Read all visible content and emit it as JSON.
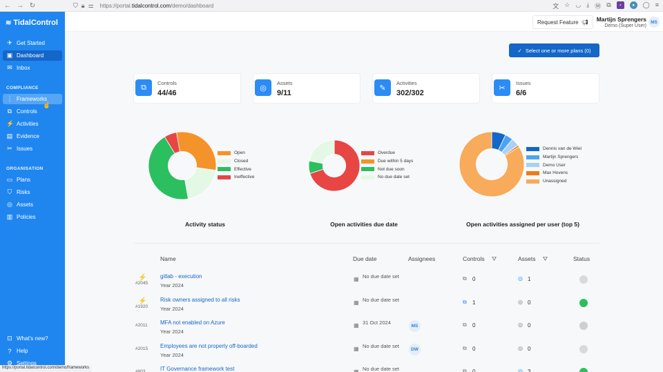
{
  "browser": {
    "url_prefix": "https://portal.",
    "url_domain": "tidalcontrol.com",
    "url_path": "/demo/dashboard",
    "status_url": "https://portal.tidalcontrol.com/demo/frameworks"
  },
  "sidebar": {
    "logo": "TidalControl",
    "top_items": [
      {
        "label": "Get Started",
        "icon": "rocket-icon",
        "glyph": "✈"
      },
      {
        "label": "Dashboard",
        "icon": "dashboard-icon",
        "glyph": "▣"
      },
      {
        "label": "Inbox",
        "icon": "inbox-icon",
        "glyph": "✉"
      }
    ],
    "compliance_label": "COMPLIANCE",
    "compliance_items": [
      {
        "label": "Frameworks",
        "icon": "frameworks-icon",
        "glyph": "⋮"
      },
      {
        "label": "Controls",
        "icon": "controls-icon",
        "glyph": "⧉"
      },
      {
        "label": "Activities",
        "icon": "activities-icon",
        "glyph": "⚡"
      },
      {
        "label": "Evidence",
        "icon": "evidence-icon",
        "glyph": "▤"
      },
      {
        "label": "Issues",
        "icon": "issues-icon",
        "glyph": "✂"
      }
    ],
    "organisation_label": "ORGANISATION",
    "organisation_items": [
      {
        "label": "Plans",
        "icon": "plans-icon",
        "glyph": "▭"
      },
      {
        "label": "Risks",
        "icon": "risks-icon",
        "glyph": "⛉"
      },
      {
        "label": "Assets",
        "icon": "assets-icon",
        "glyph": "◎"
      },
      {
        "label": "Policies",
        "icon": "policies-icon",
        "glyph": "▥"
      }
    ],
    "bottom_items": [
      {
        "label": "What's new?",
        "icon": "whats-new-icon",
        "glyph": "⊡"
      },
      {
        "label": "Help",
        "icon": "help-icon",
        "glyph": "?"
      },
      {
        "label": "Settings",
        "icon": "settings-icon",
        "glyph": "⚙"
      }
    ]
  },
  "header": {
    "request_feature": "Request Feature",
    "user_name": "Martijn Sprengers",
    "user_role": "Demo (Super User)",
    "user_initials": "MS"
  },
  "main": {
    "select_plans": "Select one or more plans (0)",
    "stats": [
      {
        "label": "Controls",
        "value": "44/46",
        "icon": "controls-icon",
        "glyph": "⧉"
      },
      {
        "label": "Assets",
        "value": "9/11",
        "icon": "globe-icon",
        "glyph": "◎"
      },
      {
        "label": "Activities",
        "value": "302/302",
        "icon": "chat-icon",
        "glyph": "✎"
      },
      {
        "label": "Issues",
        "value": "6/6",
        "icon": "tools-icon",
        "glyph": "✂"
      }
    ]
  },
  "chart_data": [
    {
      "type": "pie",
      "title": "Activity status",
      "categories": [
        "Open",
        "Closed",
        "Effective",
        "Ineffective"
      ],
      "values": [
        30,
        20,
        44,
        6
      ],
      "colors": [
        "#f5932b",
        "#e4f8e6",
        "#2bbf5f",
        "#e84545"
      ],
      "start_angle": -10,
      "legend": "right"
    },
    {
      "type": "pie",
      "title": "Open activities due date",
      "categories": [
        "Overdue",
        "Due within 5 days",
        "Not due soon",
        "No due date set"
      ],
      "values": [
        70,
        0,
        8,
        22
      ],
      "colors": [
        "#e84545",
        "#f5932b",
        "#2bbf5f",
        "#e4f8e6"
      ],
      "start_angle": 0,
      "legend": "right"
    },
    {
      "type": "pie",
      "title": "Open activities assigned per user (top 5)",
      "categories": [
        "Dennis van de Wiel",
        "Martijn Sprengers",
        "Demo User",
        "Max Hovens",
        "Unassigned"
      ],
      "values": [
        7,
        4,
        4,
        1,
        84
      ],
      "colors": [
        "#1466c8",
        "#4ea3f0",
        "#a9d1f7",
        "#f07a1a",
        "#f7ab5b"
      ],
      "start_angle": 0,
      "legend": "right"
    }
  ],
  "table": {
    "headers": {
      "name": "Name",
      "due_date": "Due date",
      "assignees": "Assignees",
      "controls": "Controls",
      "assets": "Assets",
      "status": "Status"
    },
    "rows": [
      {
        "id": "#2045",
        "title": "gitlab - execution",
        "subtitle": "Year 2024",
        "due": "No due date set",
        "assignee": "",
        "controls": "0",
        "assets": "1",
        "status": "pending",
        "bolt": true
      },
      {
        "id": "#1920",
        "title": "Risk owners assigned to all risks",
        "subtitle": "Year 2024",
        "due": "No due date set",
        "assignee": "",
        "controls": "1",
        "assets": "0",
        "status": "done",
        "bolt": true
      },
      {
        "id": "#2011",
        "title": "MFA not enabled on Azure",
        "subtitle": "Year 2024",
        "due": "31 Oct 2024",
        "assignee": "MS",
        "controls": "0",
        "assets": "0",
        "status": "half",
        "bolt": false
      },
      {
        "id": "#2015",
        "title": "Employees are not properly off-boarded",
        "subtitle": "Year 2024",
        "due": "No due date set",
        "assignee": "DW",
        "controls": "0",
        "assets": "0",
        "status": "pending",
        "bolt": false
      },
      {
        "id": "#803",
        "title": "IT Governance framework test",
        "subtitle": "",
        "due": "No due date set",
        "assignee": "",
        "controls": "0",
        "assets": "3",
        "status": "done",
        "bolt": false
      }
    ]
  }
}
